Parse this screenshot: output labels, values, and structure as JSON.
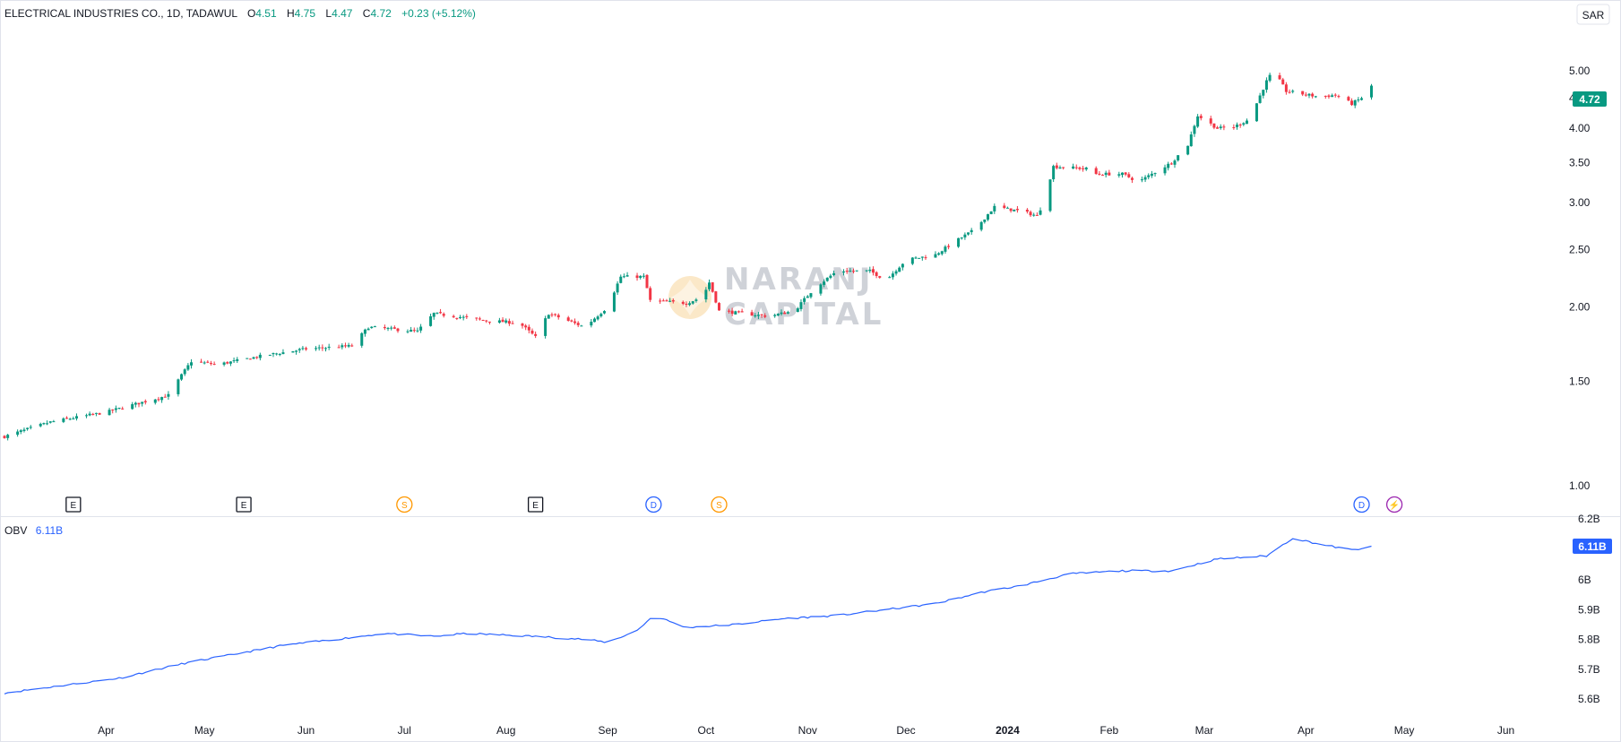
{
  "header": {
    "symbol": "ELECTRICAL INDUSTRIES CO., 1D, TADAWUL",
    "open_label": "O",
    "open": "4.51",
    "high_label": "H",
    "high": "4.75",
    "low_label": "L",
    "low": "4.47",
    "close_label": "C",
    "close": "4.72",
    "change": "+0.23 (+5.12%)"
  },
  "currency_button": "SAR",
  "watermark": {
    "line1": "NARANJ",
    "line2": "CAPITAL"
  },
  "colors": {
    "up": "#089981",
    "down": "#f23645",
    "obv_line": "#2962ff",
    "grid_divider": "#e0e3eb"
  },
  "chart_data": [
    {
      "type": "candlestick",
      "name": "price",
      "ylim": [
        0.9,
        5.3
      ],
      "y_ticks": [
        "1.00",
        "1.50",
        "2.00",
        "2.50",
        "3.00",
        "3.50",
        "4.00",
        "4.50",
        "5.00"
      ],
      "last_price_label": "4.72",
      "x_range": [
        "2023-03-01",
        "2024-06-20"
      ],
      "anchors": [
        [
          "2023-03-01",
          1.21
        ],
        [
          "2023-03-15",
          1.28
        ],
        [
          "2023-04-01",
          1.33
        ],
        [
          "2023-04-20",
          1.42
        ],
        [
          "2023-04-27",
          1.62
        ],
        [
          "2023-05-05",
          1.6
        ],
        [
          "2023-05-20",
          1.66
        ],
        [
          "2023-06-01",
          1.7
        ],
        [
          "2023-06-15",
          1.72
        ],
        [
          "2023-06-20",
          1.85
        ],
        [
          "2023-07-05",
          1.82
        ],
        [
          "2023-07-10",
          1.95
        ],
        [
          "2023-07-25",
          1.9
        ],
        [
          "2023-08-05",
          1.88
        ],
        [
          "2023-08-10",
          1.78
        ],
        [
          "2023-08-14",
          1.95
        ],
        [
          "2023-08-25",
          1.85
        ],
        [
          "2023-09-01",
          2.0
        ],
        [
          "2023-09-05",
          2.25
        ],
        [
          "2023-09-12",
          2.25
        ],
        [
          "2023-09-14",
          2.05
        ],
        [
          "2023-09-25",
          2.03
        ],
        [
          "2023-09-30",
          2.08
        ],
        [
          "2023-10-02",
          2.2
        ],
        [
          "2023-10-05",
          1.97
        ],
        [
          "2023-10-20",
          1.93
        ],
        [
          "2023-10-28",
          1.97
        ],
        [
          "2023-11-03",
          2.15
        ],
        [
          "2023-11-10",
          2.3
        ],
        [
          "2023-11-20",
          2.3
        ],
        [
          "2023-11-25",
          2.22
        ],
        [
          "2023-12-01",
          2.4
        ],
        [
          "2023-12-10",
          2.45
        ],
        [
          "2023-12-18",
          2.62
        ],
        [
          "2023-12-22",
          2.7
        ],
        [
          "2023-12-28",
          2.95
        ],
        [
          "2024-01-05",
          2.9
        ],
        [
          "2024-01-10",
          2.85
        ],
        [
          "2024-01-12",
          3.0
        ],
        [
          "2024-01-15",
          3.45
        ],
        [
          "2024-01-25",
          3.42
        ],
        [
          "2024-01-28",
          3.35
        ],
        [
          "2024-02-05",
          3.35
        ],
        [
          "2024-02-10",
          3.25
        ],
        [
          "2024-02-20",
          3.5
        ],
        [
          "2024-02-25",
          3.75
        ],
        [
          "2024-02-28",
          4.2
        ],
        [
          "2024-03-05",
          4.0
        ],
        [
          "2024-03-10",
          4.02
        ],
        [
          "2024-03-15",
          4.15
        ],
        [
          "2024-03-20",
          4.8
        ],
        [
          "2024-03-22",
          5.0
        ],
        [
          "2024-03-26",
          4.62
        ],
        [
          "2024-04-05",
          4.52
        ],
        [
          "2024-04-10",
          4.55
        ],
        [
          "2024-04-15",
          4.4
        ],
        [
          "2024-04-18",
          4.5
        ],
        [
          "2024-04-21",
          4.72
        ]
      ]
    },
    {
      "type": "line",
      "name": "OBV",
      "value_label": "6.11B",
      "ylim": [
        5.56,
        6.21
      ],
      "y_ticks": [
        "5.6B",
        "5.7B",
        "5.8B",
        "5.9B",
        "6B",
        "6.2B"
      ],
      "last_value_label": "6.11B",
      "x_labels": [
        "Apr",
        "May",
        "Jun",
        "Jul",
        "Aug",
        "Sep",
        "Oct",
        "Nov",
        "Dec",
        "2024",
        "Feb",
        "Mar",
        "Apr",
        "May",
        "Jun"
      ],
      "anchors": [
        [
          "2023-03-01",
          5.62
        ],
        [
          "2023-03-15",
          5.64
        ],
        [
          "2023-04-05",
          5.67
        ],
        [
          "2023-04-25",
          5.72
        ],
        [
          "2023-05-15",
          5.76
        ],
        [
          "2023-05-25",
          5.78
        ],
        [
          "2023-06-10",
          5.8
        ],
        [
          "2023-06-25",
          5.82
        ],
        [
          "2023-07-10",
          5.81
        ],
        [
          "2023-07-20",
          5.82
        ],
        [
          "2023-08-10",
          5.81
        ],
        [
          "2023-08-25",
          5.8
        ],
        [
          "2023-09-01",
          5.79
        ],
        [
          "2023-09-10",
          5.83
        ],
        [
          "2023-09-15",
          5.88
        ],
        [
          "2023-09-25",
          5.84
        ],
        [
          "2023-10-10",
          5.85
        ],
        [
          "2023-10-25",
          5.87
        ],
        [
          "2023-11-10",
          5.88
        ],
        [
          "2023-11-25",
          5.9
        ],
        [
          "2023-12-10",
          5.92
        ],
        [
          "2023-12-25",
          5.96
        ],
        [
          "2024-01-05",
          5.98
        ],
        [
          "2024-01-20",
          6.02
        ],
        [
          "2024-02-05",
          6.03
        ],
        [
          "2024-02-20",
          6.03
        ],
        [
          "2024-03-05",
          6.07
        ],
        [
          "2024-03-20",
          6.08
        ],
        [
          "2024-03-28",
          6.14
        ],
        [
          "2024-04-05",
          6.12
        ],
        [
          "2024-04-15",
          6.1
        ],
        [
          "2024-04-21",
          6.11
        ]
      ]
    }
  ],
  "events": [
    {
      "date": "2023-03-22",
      "label": "E"
    },
    {
      "date": "2023-05-13",
      "label": "E"
    },
    {
      "date": "2023-07-01",
      "label": "S"
    },
    {
      "date": "2023-08-10",
      "label": "E"
    },
    {
      "date": "2023-09-15",
      "label": "D"
    },
    {
      "date": "2023-10-05",
      "label": "S"
    },
    {
      "date": "2024-04-18",
      "label": "D"
    },
    {
      "date": "2024-04-28",
      "label": "⚡"
    }
  ],
  "event_colors": {
    "E": "#131722",
    "S": "#ff9800",
    "D": "#2962ff",
    "⚡": "#9c27b0"
  }
}
